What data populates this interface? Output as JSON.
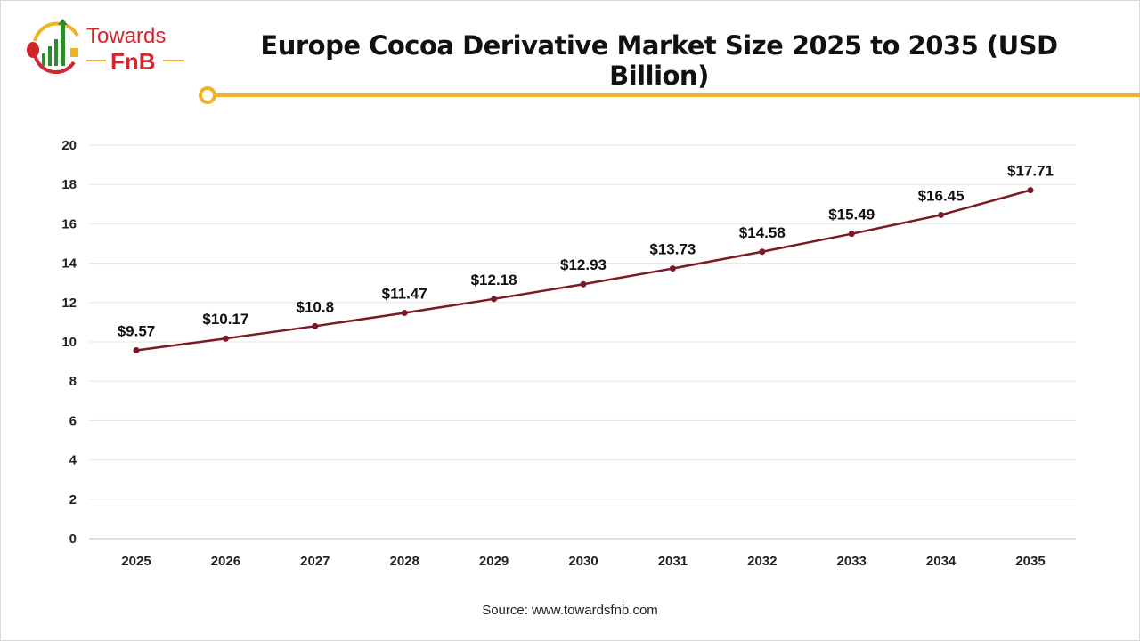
{
  "logo": {
    "line1": "Towards",
    "line2": "FnB"
  },
  "colors": {
    "line": "#7b1a26",
    "accent": "#f0b323",
    "logo_red": "#d1262e",
    "logo_green": "#2e8b2e",
    "grid": "#e6e6e6"
  },
  "chart_data": {
    "type": "line",
    "title": "Europe Cocoa Derivative Market Size 2025 to 2035 (USD Billion)",
    "categories": [
      "2025",
      "2026",
      "2027",
      "2028",
      "2029",
      "2030",
      "2031",
      "2032",
      "2033",
      "2034",
      "2035"
    ],
    "values": [
      9.57,
      10.17,
      10.8,
      11.47,
      12.18,
      12.93,
      13.73,
      14.58,
      15.49,
      16.45,
      17.71
    ],
    "data_labels": [
      "$9.57",
      "$10.17",
      "$10.8",
      "$11.47",
      "$12.18",
      "$12.93",
      "$13.73",
      "$14.58",
      "$15.49",
      "$16.45",
      "$17.71"
    ],
    "ylim": [
      0,
      20
    ],
    "yticks": [
      0,
      2,
      4,
      6,
      8,
      10,
      12,
      14,
      16,
      18,
      20
    ],
    "grid": true,
    "xlabel": "",
    "ylabel": ""
  },
  "source": "Source: www.towardsfnb.com"
}
